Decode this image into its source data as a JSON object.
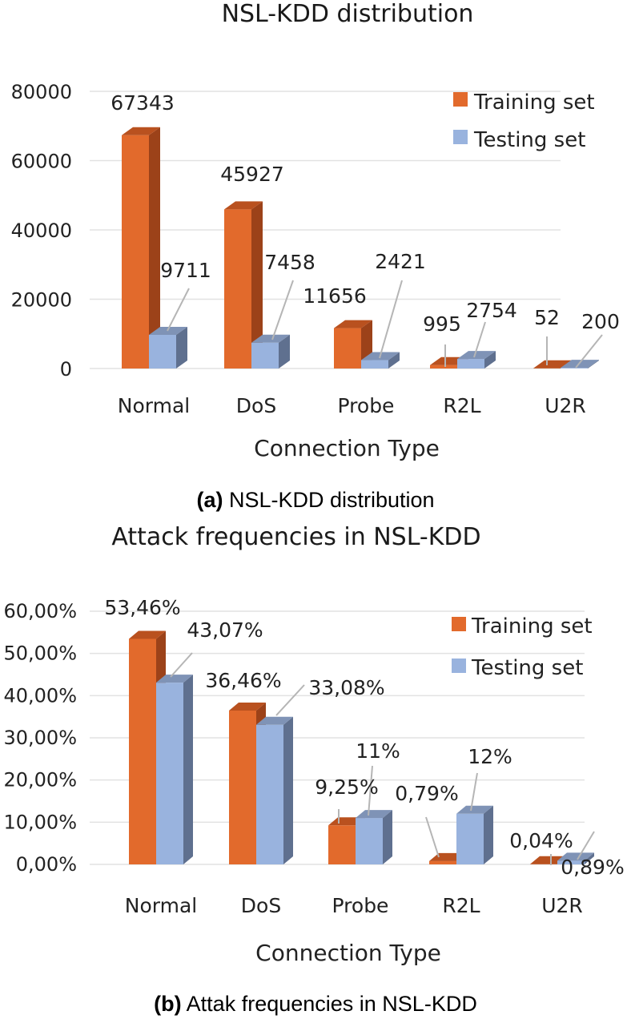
{
  "colors": {
    "training": "#e26a2c",
    "training_side": "#9c4219",
    "training_top": "#b9511f",
    "testing": "#99b3de",
    "testing_side": "#5f708f",
    "testing_top": "#7f93b6",
    "grid": "#e2e2e2",
    "leader": "#b5b5b5"
  },
  "chart_data": [
    {
      "type": "bar",
      "title": "NSL-KDD distribution",
      "xlabel": "Connection Type",
      "ylabel": "",
      "categories": [
        "Normal",
        "DoS",
        "Probe",
        "R2L",
        "U2R"
      ],
      "series": [
        {
          "name": "Training set",
          "values": [
            67343,
            45927,
            11656,
            995,
            52
          ]
        },
        {
          "name": "Testing set",
          "values": [
            9711,
            7458,
            2421,
            2754,
            200
          ]
        }
      ],
      "data_labels": [
        [
          "67343",
          "45927",
          "11656",
          "995",
          "52"
        ],
        [
          "9711",
          "7458",
          "2421",
          "2754",
          "200"
        ]
      ],
      "ylim": [
        0,
        80000
      ],
      "yticks": [
        0,
        20000,
        40000,
        60000,
        80000
      ],
      "ytick_labels": [
        "0",
        "20000",
        "40000",
        "60000",
        "80000"
      ],
      "grid": true,
      "legend": "top-right",
      "caption_letter": "(a)",
      "caption_text": " NSL-KDD distribution"
    },
    {
      "type": "bar",
      "title": "Attack frequencies in NSL-KDD",
      "xlabel": "Connection Type",
      "ylabel": "",
      "categories": [
        "Normal",
        "DoS",
        "Probe",
        "R2L",
        "U2R"
      ],
      "series": [
        {
          "name": "Training set",
          "values": [
            53.46,
            36.46,
            9.25,
            0.79,
            0.04
          ]
        },
        {
          "name": "Testing set",
          "values": [
            43.07,
            33.08,
            11,
            12,
            0.89
          ]
        }
      ],
      "data_labels": [
        [
          "53,46%",
          "36,46%",
          "9,25%",
          "0,79%",
          "0,04%"
        ],
        [
          "43,07%",
          "33,08%",
          "11%",
          "12%",
          "0,89%"
        ]
      ],
      "ylim": [
        0,
        60
      ],
      "yticks": [
        0,
        10,
        20,
        30,
        40,
        50,
        60
      ],
      "ytick_labels": [
        "0,00%",
        "10,00%",
        "20,00%",
        "30,00%",
        "40,00%",
        "50,00%",
        "60,00%"
      ],
      "grid": true,
      "legend": "top-right",
      "caption_letter": "(b)",
      "caption_text": " Attak frequencies in NSL-KDD"
    }
  ]
}
